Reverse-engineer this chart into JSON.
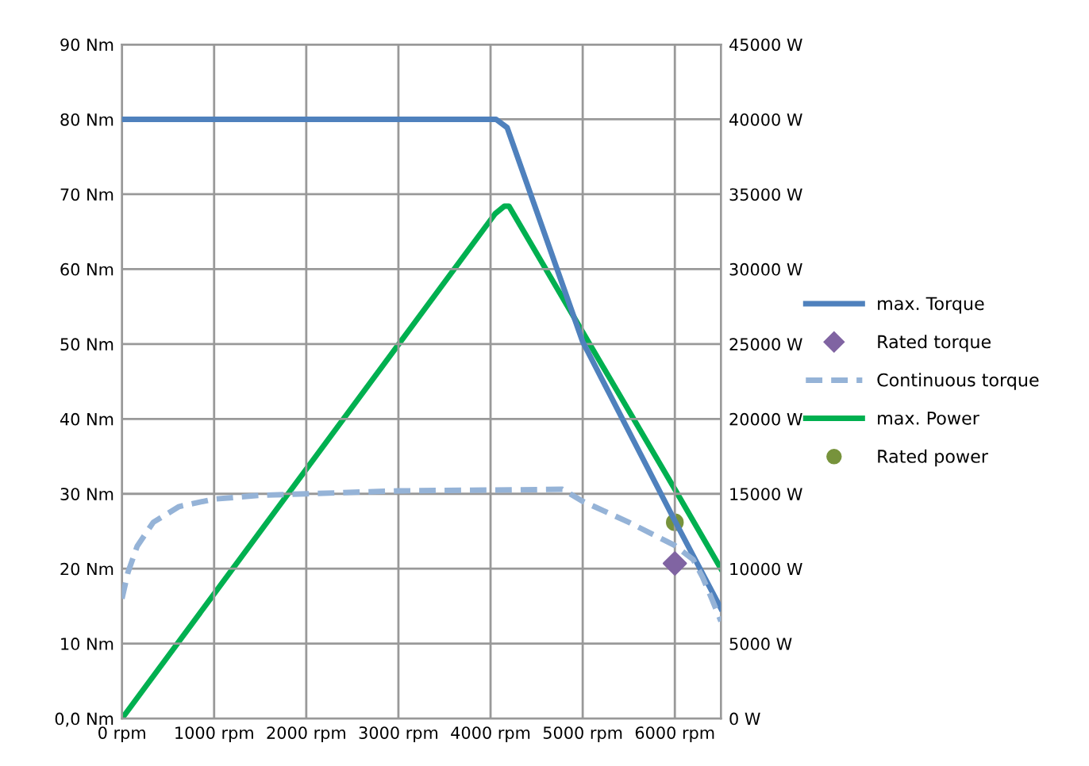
{
  "chart_data": {
    "type": "line",
    "xlim": [
      0,
      6500
    ],
    "xticks": [
      {
        "value": 0,
        "label": "0 rpm"
      },
      {
        "value": 1000,
        "label": "1000 rpm"
      },
      {
        "value": 2000,
        "label": "2000 rpm"
      },
      {
        "value": 3000,
        "label": "3000 rpm"
      },
      {
        "value": 4000,
        "label": "4000 rpm"
      },
      {
        "value": 5000,
        "label": "5000 rpm"
      },
      {
        "value": 6000,
        "label": "6000 rpm"
      }
    ],
    "ylim": [
      0,
      90
    ],
    "yticks": [
      {
        "value": 0,
        "label": "0,0 Nm"
      },
      {
        "value": 10,
        "label": "10 Nm"
      },
      {
        "value": 20,
        "label": "20 Nm"
      },
      {
        "value": 30,
        "label": "30 Nm"
      },
      {
        "value": 40,
        "label": "40 Nm"
      },
      {
        "value": 50,
        "label": "50 Nm"
      },
      {
        "value": 60,
        "label": "60 Nm"
      },
      {
        "value": 70,
        "label": "70 Nm"
      },
      {
        "value": 80,
        "label": "80 Nm"
      },
      {
        "value": 90,
        "label": "90 Nm"
      }
    ],
    "y2lim": [
      0,
      45000
    ],
    "y2ticks": [
      {
        "value": 0,
        "label": "0 W"
      },
      {
        "value": 5000,
        "label": "5000 W"
      },
      {
        "value": 10000,
        "label": "10000 W"
      },
      {
        "value": 15000,
        "label": "15000 W"
      },
      {
        "value": 20000,
        "label": "20000 W"
      },
      {
        "value": 25000,
        "label": "25000 W"
      },
      {
        "value": 30000,
        "label": "30000 W"
      },
      {
        "value": 35000,
        "label": "35000 W"
      },
      {
        "value": 40000,
        "label": "40000 W"
      },
      {
        "value": 45000,
        "label": "45000 W"
      }
    ],
    "grid": true,
    "legend": "right",
    "series": [
      {
        "name": "max. Torque",
        "color": "#4f81bd",
        "line_style": "solid",
        "marker": "none",
        "x": [
          0,
          4060,
          4180,
          5000,
          6000,
          6500
        ],
        "values": [
          80,
          80,
          78.9,
          50.3,
          26.4,
          14.7
        ]
      },
      {
        "name": "Rated torque",
        "type": "scatter",
        "color": "#8064a2",
        "marker": "diamond",
        "x": [
          6000
        ],
        "values": [
          20.7
        ]
      },
      {
        "name": "Continuous torque",
        "color": "#95b3d7",
        "line_style": "dashed",
        "marker": "none",
        "x": [
          0,
          65,
          165,
          340,
          620,
          1000,
          1500,
          2000,
          3000,
          4000,
          4780,
          5000,
          5500,
          6000,
          6200,
          6300,
          6400,
          6500
        ],
        "values": [
          16.0,
          19.5,
          23.0,
          26.2,
          28.3,
          29.3,
          29.8,
          30.0,
          30.4,
          30.5,
          30.6,
          29.0,
          26.2,
          23.1,
          21.2,
          18.9,
          16.0,
          13.0
        ]
      },
      {
        "name": "max. Power",
        "axis": "y2",
        "color": "#00b050",
        "line_style": "solid",
        "marker": "none",
        "x": [
          0,
          4050,
          4150,
          4200,
          6000,
          6500
        ],
        "values": [
          0,
          33700,
          34200,
          34200,
          15300,
          10000
        ]
      },
      {
        "name": "Rated power",
        "type": "scatter",
        "axis": "y2",
        "color": "#77933c",
        "marker": "circle",
        "x": [
          6000
        ],
        "values": [
          13100
        ]
      }
    ]
  }
}
